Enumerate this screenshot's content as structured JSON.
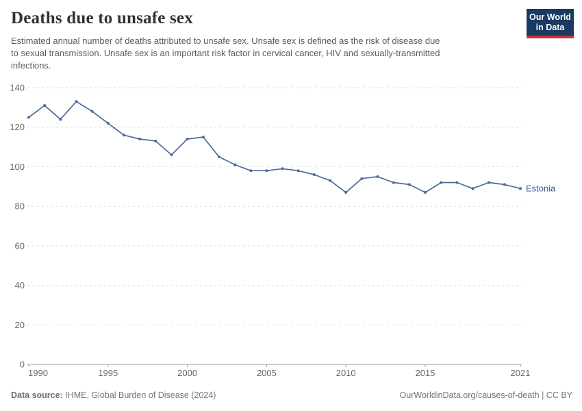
{
  "header": {
    "title": "Deaths due to unsafe sex",
    "subtitle_lines": {
      "line1": "Estimated annual number of deaths attributed to unsafe sex. Unsafe sex is defined as the risk of disease due",
      "line2": "to sexual transmission. Unsafe sex is an important risk factor in cervical cancer, HIV and sexually-transmitted",
      "line3": "infections."
    },
    "logo": {
      "line1": "Our World",
      "line2": "in Data",
      "bg_color": "#1a3a62",
      "accent_color": "#cf2d41",
      "text_color": "#ffffff"
    }
  },
  "chart_data": {
    "type": "line",
    "title": "Deaths due to unsafe sex",
    "xlabel": "",
    "ylabel": "",
    "x": [
      1990,
      1991,
      1992,
      1993,
      1994,
      1995,
      1996,
      1997,
      1998,
      1999,
      2000,
      2001,
      2002,
      2003,
      2004,
      2005,
      2006,
      2007,
      2008,
      2009,
      2010,
      2011,
      2012,
      2013,
      2014,
      2015,
      2016,
      2017,
      2018,
      2019,
      2020,
      2021
    ],
    "series": [
      {
        "name": "Estonia",
        "color": "#4c6a9c",
        "label_color": "#3d5b96",
        "values": [
          125,
          131,
          124,
          133,
          128,
          122,
          116,
          114,
          113,
          106,
          114,
          115,
          105,
          101,
          98,
          98,
          99,
          98,
          96,
          93,
          87,
          94,
          95,
          92,
          91,
          87,
          92,
          92,
          89,
          92,
          91,
          89
        ]
      }
    ],
    "ylim": [
      0,
      140
    ],
    "yticks": [
      0,
      20,
      40,
      60,
      80,
      100,
      120,
      140
    ],
    "xticks": [
      1990,
      1995,
      2000,
      2005,
      2010,
      2015,
      2021
    ],
    "grid": "horizontal-dashed",
    "grid_color": "#dcdcdc",
    "axis_color": "#9e9e9e",
    "legend_position": "line-end-label"
  },
  "footer": {
    "source_label": "Data source:",
    "source_text": "IHME, Global Burden of Disease (2024)",
    "rights": "OurWorldinData.org/causes-of-death | CC BY"
  }
}
